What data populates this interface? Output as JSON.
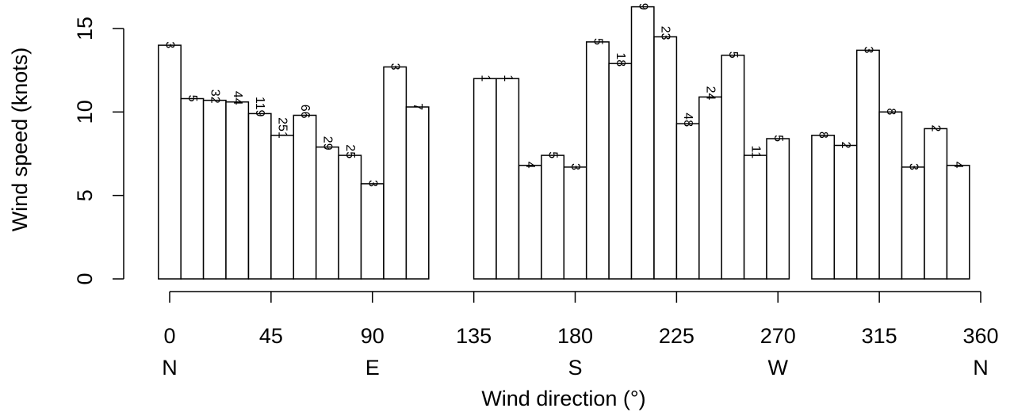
{
  "chart_data": {
    "type": "bar",
    "xlabel": "Wind direction (°)",
    "ylabel": "Wind speed (knots)",
    "xlim": [
      0,
      360
    ],
    "ylim": [
      0,
      15
    ],
    "bin_width": 10,
    "x_ticks": [
      0,
      45,
      90,
      135,
      180,
      225,
      270,
      315,
      360
    ],
    "y_ticks": [
      0,
      5,
      10,
      15
    ],
    "compass_labels": [
      {
        "at": 0,
        "label": "N"
      },
      {
        "at": 90,
        "label": "E"
      },
      {
        "at": 180,
        "label": "S"
      },
      {
        "at": 270,
        "label": "W"
      },
      {
        "at": 360,
        "label": "N"
      }
    ],
    "bars": [
      {
        "x": 0,
        "value": 14.0,
        "count": "3"
      },
      {
        "x": 10,
        "value": 10.8,
        "count": "5"
      },
      {
        "x": 20,
        "value": 10.7,
        "count": "32"
      },
      {
        "x": 30,
        "value": 10.6,
        "count": "44"
      },
      {
        "x": 40,
        "value": 9.9,
        "count": "119"
      },
      {
        "x": 50,
        "value": 8.6,
        "count": "251"
      },
      {
        "x": 60,
        "value": 9.8,
        "count": "66"
      },
      {
        "x": 70,
        "value": 7.9,
        "count": "29"
      },
      {
        "x": 80,
        "value": 7.4,
        "count": "25"
      },
      {
        "x": 90,
        "value": 5.7,
        "count": "3"
      },
      {
        "x": 100,
        "value": 12.7,
        "count": "3"
      },
      {
        "x": 110,
        "value": 10.3,
        "count": "7"
      },
      {
        "x": 140,
        "value": 12.0,
        "count": "1"
      },
      {
        "x": 150,
        "value": 12.0,
        "count": "1"
      },
      {
        "x": 160,
        "value": 6.8,
        "count": "4"
      },
      {
        "x": 170,
        "value": 7.4,
        "count": "5"
      },
      {
        "x": 180,
        "value": 6.7,
        "count": "3"
      },
      {
        "x": 190,
        "value": 14.2,
        "count": "5"
      },
      {
        "x": 200,
        "value": 12.9,
        "count": "18"
      },
      {
        "x": 210,
        "value": 16.3,
        "count": "9"
      },
      {
        "x": 220,
        "value": 14.5,
        "count": "23"
      },
      {
        "x": 230,
        "value": 9.3,
        "count": "48"
      },
      {
        "x": 240,
        "value": 10.9,
        "count": "24"
      },
      {
        "x": 250,
        "value": 13.4,
        "count": "5"
      },
      {
        "x": 260,
        "value": 7.4,
        "count": "11"
      },
      {
        "x": 270,
        "value": 8.4,
        "count": "5"
      },
      {
        "x": 290,
        "value": 8.6,
        "count": "8"
      },
      {
        "x": 300,
        "value": 8.0,
        "count": "2"
      },
      {
        "x": 310,
        "value": 13.7,
        "count": "3"
      },
      {
        "x": 320,
        "value": 10.0,
        "count": "8"
      },
      {
        "x": 330,
        "value": 6.7,
        "count": "3"
      },
      {
        "x": 340,
        "value": 9.0,
        "count": "2"
      },
      {
        "x": 350,
        "value": 6.8,
        "count": "4"
      }
    ],
    "grid": false,
    "legend": "none"
  }
}
